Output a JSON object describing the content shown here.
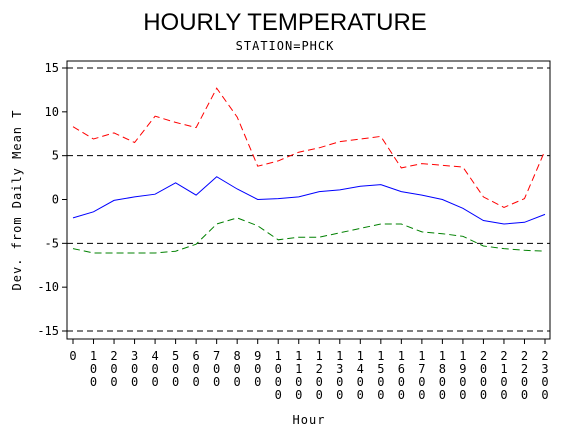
{
  "chart_data": {
    "type": "line",
    "title": "HOURLY TEMPERATURE",
    "subtitle": "STATION=PHCK",
    "xlabel": "Hour",
    "ylabel": "Dev. from Daily Mean T",
    "x": [
      0,
      100,
      200,
      300,
      400,
      500,
      600,
      700,
      800,
      900,
      1000,
      1100,
      1200,
      1300,
      1400,
      1500,
      1600,
      1700,
      1800,
      1900,
      2000,
      2100,
      2200,
      2300
    ],
    "x_tick_labels": [
      "0",
      "100",
      "200",
      "300",
      "400",
      "500",
      "600",
      "700",
      "800",
      "900",
      "1000",
      "1100",
      "1200",
      "1300",
      "1400",
      "1500",
      "1600",
      "1700",
      "1800",
      "1900",
      "2000",
      "2100",
      "2200",
      "2300"
    ],
    "ylim": [
      -15,
      15
    ],
    "y_ticks": [
      -15,
      -10,
      -5,
      0,
      5,
      10,
      15
    ],
    "reference_lines": [
      -15,
      -5,
      5,
      15
    ],
    "grid": false,
    "legend": "none",
    "series": [
      {
        "line_style": "dashed",
        "color": "#ff0000",
        "values": [
          8.3,
          6.9,
          7.6,
          6.5,
          9.5,
          8.8,
          8.2,
          12.7,
          9.4,
          3.8,
          4.4,
          5.4,
          5.9,
          6.6,
          6.9,
          7.2,
          3.6,
          4.1,
          3.9,
          3.7,
          0.3,
          -0.9,
          0.1,
          5.6
        ]
      },
      {
        "line_style": "solid",
        "color": "#0000ff",
        "values": [
          -2.1,
          -1.4,
          -0.1,
          0.3,
          0.6,
          1.9,
          0.5,
          2.6,
          1.2,
          0.0,
          0.1,
          0.3,
          0.9,
          1.1,
          1.5,
          1.7,
          0.9,
          0.5,
          0.0,
          -1.0,
          -2.4,
          -2.8,
          -2.6,
          -1.7
        ]
      },
      {
        "line_style": "dashed",
        "color": "#008000",
        "values": [
          -5.6,
          -6.1,
          -6.1,
          -6.1,
          -6.1,
          -5.9,
          -5.1,
          -2.8,
          -2.1,
          -3.0,
          -4.6,
          -4.3,
          -4.3,
          -3.8,
          -3.3,
          -2.8,
          -2.8,
          -3.7,
          -3.9,
          -4.2,
          -5.3,
          -5.6,
          -5.8,
          -5.9
        ]
      }
    ]
  }
}
